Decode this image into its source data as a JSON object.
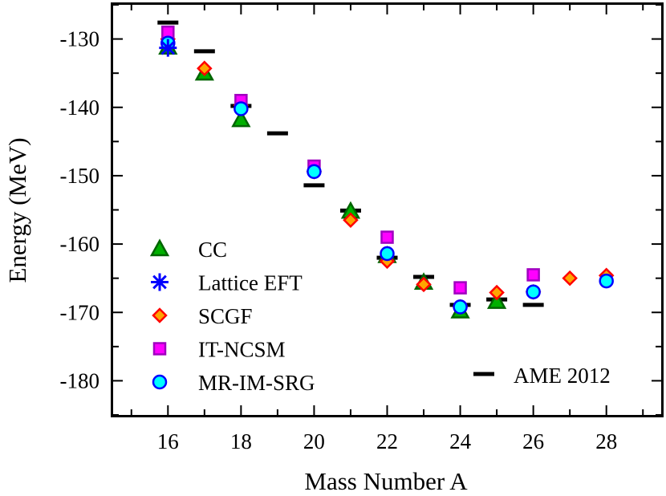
{
  "chart_data": {
    "type": "scatter",
    "title": "",
    "xlabel": "Mass Number A",
    "ylabel": "Energy (MeV)",
    "xlim": [
      14.5,
      29.5
    ],
    "ylim": [
      -185,
      -125
    ],
    "xticks": [
      16,
      18,
      20,
      22,
      24,
      26,
      28
    ],
    "yticks": [
      -130,
      -140,
      -150,
      -160,
      -170,
      -180
    ],
    "grid": false,
    "series": [
      {
        "name": "CC",
        "marker": "triangle",
        "fill": "#00b000",
        "stroke": "#006400",
        "x": [
          16,
          17,
          18,
          21,
          22,
          23,
          24,
          25
        ],
        "y": [
          -131.2,
          -135.0,
          -141.8,
          -155.2,
          -161.7,
          -165.6,
          -169.8,
          -168.4
        ]
      },
      {
        "name": "Lattice EFT",
        "marker": "asterisk",
        "fill": "#0000ff",
        "stroke": "#0000ff",
        "x": [
          16
        ],
        "y": [
          -131.3
        ]
      },
      {
        "name": "SCGF",
        "marker": "diamond",
        "fill": "#ffa500",
        "stroke": "#ff0000",
        "x": [
          16,
          17,
          18,
          20,
          21,
          22,
          23,
          24,
          25,
          26,
          27,
          28
        ],
        "y": [
          -130.0,
          -134.3,
          -139.7,
          -149.4,
          -156.5,
          -162.5,
          -165.9,
          -169.2,
          -167.1,
          -167.0,
          -165.0,
          -164.6
        ]
      },
      {
        "name": "IT-NCSM",
        "marker": "square",
        "fill": "#ff00ff",
        "stroke": "#a000c0",
        "x": [
          16,
          18,
          20,
          22,
          24,
          26
        ],
        "y": [
          -129.0,
          -139.0,
          -148.6,
          -159.0,
          -166.4,
          -164.5
        ]
      },
      {
        "name": "MR-IM-SRG",
        "marker": "circle",
        "fill": "#00ffff",
        "stroke": "#0000ff",
        "x": [
          16,
          18,
          20,
          22,
          24,
          26,
          28
        ],
        "y": [
          -130.6,
          -140.2,
          -149.4,
          -161.4,
          -169.2,
          -167.0,
          -165.4
        ]
      },
      {
        "name": "AME 2012",
        "marker": "dash",
        "fill": "#000000",
        "stroke": "#000000",
        "x": [
          16,
          17,
          18,
          19,
          20,
          21,
          22,
          23,
          24,
          25,
          26
        ],
        "y": [
          -127.6,
          -131.8,
          -139.8,
          -143.8,
          -151.4,
          -155.1,
          -162.0,
          -164.8,
          -168.9,
          -168.1,
          -168.9
        ]
      }
    ]
  }
}
